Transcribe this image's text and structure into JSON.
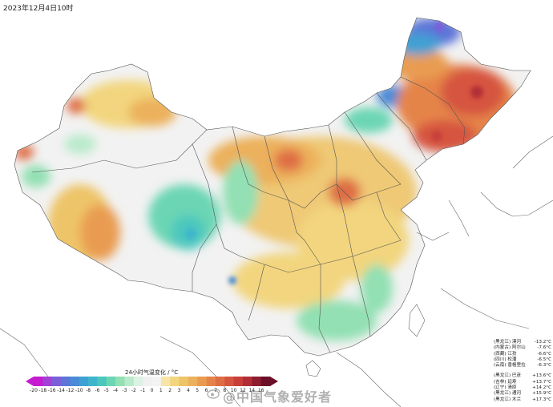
{
  "title": "2023年12月4日10时",
  "legend": {
    "title": "24小时气温变化 / °C",
    "ticks": [
      "-20",
      "-18",
      "-16",
      "-14",
      "-12",
      "-10",
      "-8",
      "-6",
      "-5",
      "-4",
      "-3",
      "-2",
      "-1",
      "0",
      "1",
      "2",
      "3",
      "4",
      "5",
      "6",
      "7",
      "8",
      "10",
      "12",
      "14",
      "16"
    ],
    "colors": [
      "#c51bd1",
      "#a23fd6",
      "#7b5fd8",
      "#5d74d8",
      "#4a8ad6",
      "#3fa0d3",
      "#3fb5cc",
      "#4cc7be",
      "#6cd6b4",
      "#92e0b3",
      "#b9eacb",
      "#dcf2e4",
      "#f0f0f0",
      "#f3f3f3",
      "#f6e4a8",
      "#f2d57e",
      "#eec468",
      "#ecb15c",
      "#e99c51",
      "#e5844a",
      "#df6d44",
      "#d6553f",
      "#c83f3a",
      "#b22e37",
      "#8e1d30",
      "#6b1028"
    ],
    "left_arrow_color": "#c51bd1",
    "right_arrow_color": "#6b1028"
  },
  "stations_group1": [
    {
      "name": "(黑龙江) 漠河",
      "value": "-13.2°C"
    },
    {
      "name": "(内蒙古) 阿尔山",
      "value": "-7.6°C"
    },
    {
      "name": "(西藏) 江孜",
      "value": "-6.6°C"
    },
    {
      "name": "(四川) 松潘",
      "value": "-6.5°C"
    },
    {
      "name": "(云南) 香格里拉",
      "value": "-6.3°C"
    }
  ],
  "stations_group2": [
    {
      "name": "(黑龙江) 巴彦",
      "value": "+13.6°C"
    },
    {
      "name": "(吉林) 延寿",
      "value": "+13.7°C"
    },
    {
      "name": "(辽宁) 清原",
      "value": "+14.2°C"
    },
    {
      "name": "(黑龙江) 通河",
      "value": "+15.9°C"
    },
    {
      "name": "(黑龙江) 木兰",
      "value": "+17.3°C"
    }
  ],
  "watermark": "@中国气象爱好者",
  "colors": {
    "warm_strong": "#d6553f",
    "warm": "#eec468",
    "cool": "#6cd6b4",
    "cold": "#4a8ad6",
    "neutral": "#f0f0f0"
  }
}
